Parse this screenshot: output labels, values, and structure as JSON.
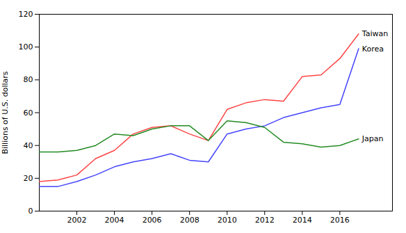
{
  "chart_data": {
    "type": "line",
    "y_label": "Billions of U.S. dollars",
    "x": [
      2000,
      2001,
      2002,
      2003,
      2004,
      2005,
      2006,
      2007,
      2008,
      2009,
      2010,
      2011,
      2012,
      2013,
      2014,
      2015,
      2016,
      2017
    ],
    "series": [
      {
        "name": "Taiwan",
        "color": "#FF4444",
        "values": [
          18,
          19,
          22,
          32,
          37,
          47,
          51,
          52,
          47,
          43,
          62,
          66,
          68,
          67,
          82,
          83,
          93,
          108
        ]
      },
      {
        "name": "Korea",
        "color": "#4444FF",
        "values": [
          15,
          15,
          18,
          22,
          27,
          30,
          32,
          35,
          31,
          30,
          47,
          50,
          52,
          57,
          60,
          63,
          65,
          99
        ]
      },
      {
        "name": "Japan",
        "color": "#228B22",
        "values": [
          36,
          36,
          37,
          40,
          47,
          46,
          50,
          52,
          52,
          43,
          55,
          54,
          51,
          42,
          41,
          39,
          40,
          44
        ]
      }
    ],
    "xlim": [
      2000,
      2018.8
    ],
    "xticks": [
      2002,
      2004,
      2006,
      2008,
      2010,
      2012,
      2014,
      2016
    ],
    "ylim": [
      0,
      120
    ],
    "yticks": [
      0,
      20,
      40,
      60,
      80,
      100,
      120
    ],
    "grid": false
  }
}
